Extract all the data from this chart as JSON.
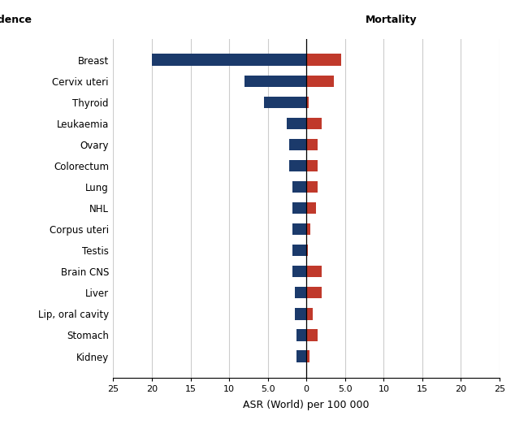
{
  "categories": [
    "Breast",
    "Cervix uteri",
    "Thyroid",
    "Leukaemia",
    "Ovary",
    "Colorectum",
    "Lung",
    "NHL",
    "Corpus uteri",
    "Testis",
    "Brain CNS",
    "Liver",
    "Lip, oral cavity",
    "Stomach",
    "Kidney"
  ],
  "incidence": [
    20.0,
    8.0,
    5.5,
    2.5,
    2.2,
    2.2,
    1.8,
    1.8,
    1.8,
    1.8,
    1.8,
    1.5,
    1.5,
    1.3,
    1.3
  ],
  "mortality": [
    4.5,
    3.5,
    0.3,
    2.0,
    1.5,
    1.5,
    1.5,
    1.2,
    0.5,
    0.2,
    2.0,
    2.0,
    0.8,
    1.5,
    0.4
  ],
  "incidence_color": "#1b3a6b",
  "mortality_color": "#c0392b",
  "title_incidence": "Incidence",
  "title_mortality": "Mortality",
  "xlabel": "ASR (World) per 100 000",
  "xlim": 25,
  "background_color": "#ffffff",
  "bar_height": 0.55,
  "gridline_color": "#cccccc"
}
